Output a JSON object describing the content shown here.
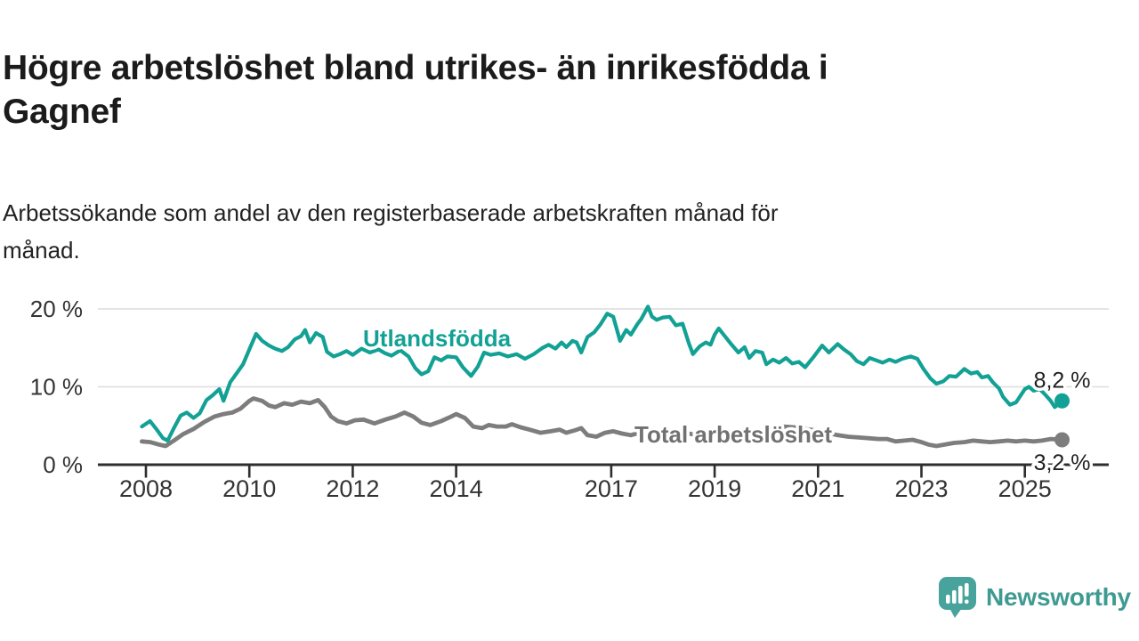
{
  "header": {
    "title_lines": [
      "Högre arbetslöshet bland utrikes- än inrikesfödda i",
      "Gagnef"
    ],
    "subtitle_lines": [
      "Arbetssökande som andel av den registerbaserade arbetskraften månad för",
      "månad."
    ]
  },
  "footer": {
    "brand": "Newsworthy",
    "logo_icon": "speech-bubble-bar-chart-exclamation-icon",
    "logo_icon_color": "#47a39b",
    "logo_text_color": "#3f9a92"
  },
  "colors": {
    "background": "#ffffff",
    "title_text": "#1b1b1b",
    "subtitle_text": "#222222",
    "axis_line": "#2e2e2e",
    "gridline": "#dcdcdc",
    "axis_label": "#333333",
    "value_label": "#1f1f1f",
    "series_foreign_born": "#12a194",
    "series_total": "#7d7d7d",
    "series_total_label": "#717171"
  },
  "chart_data": {
    "type": "line",
    "grid": "horizontal",
    "legend_position": "inline-labels",
    "x_axis": {
      "min": 2007.8,
      "max": 2026.1,
      "ticks": [
        {
          "value": 2008,
          "label": "2008"
        },
        {
          "value": 2010,
          "label": "2010"
        },
        {
          "value": 2012,
          "label": "2012"
        },
        {
          "value": 2014,
          "label": "2014"
        },
        {
          "value": 2017,
          "label": "2017"
        },
        {
          "value": 2019,
          "label": "2019"
        },
        {
          "value": 2021,
          "label": "2021"
        },
        {
          "value": 2023,
          "label": "2023"
        },
        {
          "value": 2025,
          "label": "2025"
        }
      ]
    },
    "y_axis": {
      "min": 0,
      "max": 20.7,
      "unit": "%",
      "ticks": [
        {
          "value": 0,
          "label": "0 %"
        },
        {
          "value": 10,
          "label": "10 %"
        },
        {
          "value": 20,
          "label": "20 %"
        }
      ]
    },
    "series": [
      {
        "id": "total-arbetsloshet",
        "name": "Total arbetslöshet",
        "color": "#7d7d7d",
        "label_color": "#717171",
        "line_width": 4.8,
        "inline_label_anchor": {
          "year": 2017.45,
          "value": 3.65
        },
        "end_value": 3.2,
        "end_label": "3,2 %",
        "end_label_position": "below",
        "points": [
          [
            2007.92,
            3.0
          ],
          [
            2008.08,
            2.9
          ],
          [
            2008.25,
            2.6
          ],
          [
            2008.38,
            2.4
          ],
          [
            2008.54,
            3.1
          ],
          [
            2008.71,
            3.9
          ],
          [
            2008.92,
            4.6
          ],
          [
            2009.13,
            5.5
          ],
          [
            2009.33,
            6.2
          ],
          [
            2009.5,
            6.5
          ],
          [
            2009.67,
            6.7
          ],
          [
            2009.83,
            7.2
          ],
          [
            2010.0,
            8.2
          ],
          [
            2010.08,
            8.5
          ],
          [
            2010.25,
            8.2
          ],
          [
            2010.38,
            7.6
          ],
          [
            2010.5,
            7.4
          ],
          [
            2010.67,
            7.9
          ],
          [
            2010.83,
            7.7
          ],
          [
            2011.0,
            8.1
          ],
          [
            2011.17,
            7.9
          ],
          [
            2011.33,
            8.3
          ],
          [
            2011.46,
            7.4
          ],
          [
            2011.58,
            6.2
          ],
          [
            2011.71,
            5.6
          ],
          [
            2011.88,
            5.3
          ],
          [
            2012.04,
            5.7
          ],
          [
            2012.21,
            5.8
          ],
          [
            2012.42,
            5.3
          ],
          [
            2012.63,
            5.8
          ],
          [
            2012.83,
            6.2
          ],
          [
            2013.0,
            6.7
          ],
          [
            2013.17,
            6.2
          ],
          [
            2013.33,
            5.4
          ],
          [
            2013.5,
            5.1
          ],
          [
            2013.71,
            5.6
          ],
          [
            2013.88,
            6.1
          ],
          [
            2014.0,
            6.5
          ],
          [
            2014.17,
            6.0
          ],
          [
            2014.33,
            4.9
          ],
          [
            2014.5,
            4.7
          ],
          [
            2014.63,
            5.1
          ],
          [
            2014.79,
            4.9
          ],
          [
            2014.96,
            4.9
          ],
          [
            2015.08,
            5.2
          ],
          [
            2015.25,
            4.8
          ],
          [
            2015.42,
            4.5
          ],
          [
            2015.63,
            4.1
          ],
          [
            2015.83,
            4.3
          ],
          [
            2016.0,
            4.5
          ],
          [
            2016.13,
            4.1
          ],
          [
            2016.29,
            4.4
          ],
          [
            2016.42,
            4.7
          ],
          [
            2016.54,
            3.8
          ],
          [
            2016.71,
            3.6
          ],
          [
            2016.88,
            4.1
          ],
          [
            2017.04,
            4.3
          ],
          [
            2017.21,
            4.0
          ],
          [
            2017.38,
            3.8
          ],
          [
            2017.54,
            4.1
          ],
          [
            2017.71,
            4.3
          ],
          [
            2017.88,
            3.9
          ],
          [
            2018.08,
            4.2
          ],
          [
            2018.29,
            4.4
          ],
          [
            2018.5,
            4.0
          ],
          [
            2018.67,
            3.8
          ],
          [
            2018.88,
            4.0
          ],
          [
            2019.08,
            4.3
          ],
          [
            2019.29,
            4.1
          ],
          [
            2019.5,
            4.0
          ],
          [
            2019.71,
            4.2
          ],
          [
            2019.92,
            4.4
          ],
          [
            2020.13,
            4.7
          ],
          [
            2020.33,
            4.9
          ],
          [
            2020.54,
            4.8
          ],
          [
            2020.75,
            4.6
          ],
          [
            2020.96,
            4.4
          ],
          [
            2021.17,
            4.1
          ],
          [
            2021.38,
            3.8
          ],
          [
            2021.58,
            3.6
          ],
          [
            2021.79,
            3.5
          ],
          [
            2022.0,
            3.4
          ],
          [
            2022.17,
            3.3
          ],
          [
            2022.33,
            3.3
          ],
          [
            2022.5,
            3.0
          ],
          [
            2022.67,
            3.1
          ],
          [
            2022.83,
            3.2
          ],
          [
            2023.0,
            2.9
          ],
          [
            2023.13,
            2.6
          ],
          [
            2023.29,
            2.4
          ],
          [
            2023.46,
            2.6
          ],
          [
            2023.63,
            2.8
          ],
          [
            2023.83,
            2.9
          ],
          [
            2024.0,
            3.1
          ],
          [
            2024.17,
            3.0
          ],
          [
            2024.33,
            2.9
          ],
          [
            2024.5,
            3.0
          ],
          [
            2024.67,
            3.1
          ],
          [
            2024.83,
            3.0
          ],
          [
            2025.0,
            3.1
          ],
          [
            2025.17,
            3.0
          ],
          [
            2025.33,
            3.1
          ],
          [
            2025.5,
            3.3
          ],
          [
            2025.72,
            3.2
          ]
        ]
      },
      {
        "id": "utlandsfodda",
        "name": "Utlandsfödda",
        "color": "#12a194",
        "label_color": "#12a194",
        "line_width": 4.2,
        "inline_label_anchor": {
          "year": 2012.2,
          "value": 16.0
        },
        "end_value": 8.2,
        "end_label": "8,2 %",
        "end_label_position": "above",
        "points": [
          [
            2007.92,
            4.9
          ],
          [
            2008.08,
            5.6
          ],
          [
            2008.21,
            4.5
          ],
          [
            2008.33,
            3.4
          ],
          [
            2008.42,
            3.1
          ],
          [
            2008.54,
            4.7
          ],
          [
            2008.67,
            6.3
          ],
          [
            2008.79,
            6.7
          ],
          [
            2008.92,
            6.0
          ],
          [
            2009.04,
            6.6
          ],
          [
            2009.17,
            8.3
          ],
          [
            2009.29,
            8.9
          ],
          [
            2009.42,
            9.7
          ],
          [
            2009.5,
            8.2
          ],
          [
            2009.63,
            10.6
          ],
          [
            2009.75,
            11.7
          ],
          [
            2009.88,
            12.9
          ],
          [
            2010.0,
            14.8
          ],
          [
            2010.13,
            16.8
          ],
          [
            2010.25,
            15.9
          ],
          [
            2010.38,
            15.3
          ],
          [
            2010.5,
            14.9
          ],
          [
            2010.63,
            14.6
          ],
          [
            2010.75,
            15.1
          ],
          [
            2010.88,
            16.1
          ],
          [
            2011.0,
            16.5
          ],
          [
            2011.08,
            17.3
          ],
          [
            2011.17,
            15.7
          ],
          [
            2011.29,
            16.9
          ],
          [
            2011.42,
            16.4
          ],
          [
            2011.5,
            14.5
          ],
          [
            2011.63,
            13.9
          ],
          [
            2011.75,
            14.2
          ],
          [
            2011.88,
            14.6
          ],
          [
            2012.0,
            14.1
          ],
          [
            2012.17,
            14.9
          ],
          [
            2012.33,
            14.4
          ],
          [
            2012.5,
            14.8
          ],
          [
            2012.63,
            14.3
          ],
          [
            2012.75,
            14.0
          ],
          [
            2012.92,
            14.7
          ],
          [
            2013.08,
            13.9
          ],
          [
            2013.21,
            12.4
          ],
          [
            2013.33,
            11.6
          ],
          [
            2013.46,
            12.0
          ],
          [
            2013.58,
            13.8
          ],
          [
            2013.71,
            13.4
          ],
          [
            2013.83,
            13.9
          ],
          [
            2014.0,
            13.8
          ],
          [
            2014.13,
            12.5
          ],
          [
            2014.29,
            11.4
          ],
          [
            2014.42,
            12.6
          ],
          [
            2014.54,
            14.4
          ],
          [
            2014.67,
            14.1
          ],
          [
            2014.83,
            14.3
          ],
          [
            2015.0,
            13.9
          ],
          [
            2015.17,
            14.2
          ],
          [
            2015.33,
            13.6
          ],
          [
            2015.5,
            14.2
          ],
          [
            2015.67,
            15.0
          ],
          [
            2015.79,
            15.4
          ],
          [
            2015.92,
            14.9
          ],
          [
            2016.04,
            15.7
          ],
          [
            2016.13,
            15.1
          ],
          [
            2016.25,
            15.9
          ],
          [
            2016.33,
            15.7
          ],
          [
            2016.42,
            14.4
          ],
          [
            2016.54,
            16.4
          ],
          [
            2016.67,
            17.0
          ],
          [
            2016.79,
            18.0
          ],
          [
            2016.92,
            19.4
          ],
          [
            2017.04,
            19.0
          ],
          [
            2017.17,
            15.9
          ],
          [
            2017.29,
            17.3
          ],
          [
            2017.38,
            16.7
          ],
          [
            2017.5,
            18.0
          ],
          [
            2017.58,
            18.7
          ],
          [
            2017.71,
            20.3
          ],
          [
            2017.79,
            19.0
          ],
          [
            2017.88,
            18.6
          ],
          [
            2018.0,
            18.9
          ],
          [
            2018.13,
            19.0
          ],
          [
            2018.25,
            17.9
          ],
          [
            2018.38,
            18.1
          ],
          [
            2018.5,
            15.6
          ],
          [
            2018.58,
            14.2
          ],
          [
            2018.71,
            15.2
          ],
          [
            2018.83,
            15.7
          ],
          [
            2018.92,
            15.4
          ],
          [
            2019.0,
            16.7
          ],
          [
            2019.08,
            17.5
          ],
          [
            2019.21,
            16.4
          ],
          [
            2019.33,
            15.4
          ],
          [
            2019.46,
            14.4
          ],
          [
            2019.58,
            15.1
          ],
          [
            2019.67,
            13.7
          ],
          [
            2019.79,
            14.6
          ],
          [
            2019.92,
            14.4
          ],
          [
            2020.0,
            12.9
          ],
          [
            2020.13,
            13.5
          ],
          [
            2020.25,
            13.1
          ],
          [
            2020.38,
            13.7
          ],
          [
            2020.5,
            13.0
          ],
          [
            2020.63,
            13.2
          ],
          [
            2020.75,
            12.5
          ],
          [
            2020.92,
            13.9
          ],
          [
            2021.08,
            15.3
          ],
          [
            2021.21,
            14.4
          ],
          [
            2021.38,
            15.5
          ],
          [
            2021.5,
            14.8
          ],
          [
            2021.63,
            14.2
          ],
          [
            2021.75,
            13.3
          ],
          [
            2021.88,
            12.9
          ],
          [
            2022.0,
            13.7
          ],
          [
            2022.13,
            13.4
          ],
          [
            2022.25,
            13.1
          ],
          [
            2022.38,
            13.5
          ],
          [
            2022.5,
            13.2
          ],
          [
            2022.63,
            13.6
          ],
          [
            2022.79,
            13.9
          ],
          [
            2022.92,
            13.6
          ],
          [
            2023.04,
            12.3
          ],
          [
            2023.17,
            11.1
          ],
          [
            2023.29,
            10.4
          ],
          [
            2023.42,
            10.7
          ],
          [
            2023.54,
            11.4
          ],
          [
            2023.67,
            11.3
          ],
          [
            2023.83,
            12.3
          ],
          [
            2023.96,
            11.7
          ],
          [
            2024.08,
            11.9
          ],
          [
            2024.17,
            11.2
          ],
          [
            2024.29,
            11.4
          ],
          [
            2024.38,
            10.6
          ],
          [
            2024.5,
            9.8
          ],
          [
            2024.58,
            8.7
          ],
          [
            2024.71,
            7.7
          ],
          [
            2024.83,
            8.0
          ],
          [
            2024.92,
            8.9
          ],
          [
            2025.0,
            9.7
          ],
          [
            2025.08,
            10.0
          ],
          [
            2025.17,
            9.5
          ],
          [
            2025.29,
            9.7
          ],
          [
            2025.38,
            9.1
          ],
          [
            2025.5,
            8.2
          ],
          [
            2025.58,
            7.4
          ],
          [
            2025.72,
            8.2
          ]
        ]
      }
    ]
  }
}
